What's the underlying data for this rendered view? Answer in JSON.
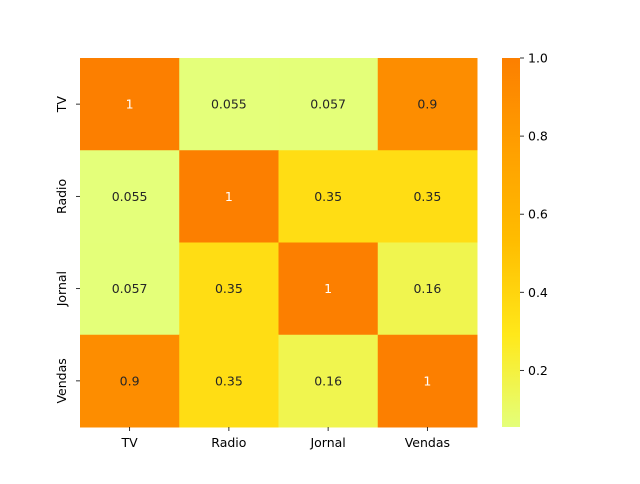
{
  "chart_data": {
    "type": "heatmap",
    "title": "",
    "xlabel": "",
    "ylabel": "",
    "x_categories": [
      "TV",
      "Radio",
      "Jornal",
      "Vendas"
    ],
    "y_categories": [
      "TV",
      "Radio",
      "Jornal",
      "Vendas"
    ],
    "values": [
      [
        1,
        0.055,
        0.057,
        0.9
      ],
      [
        0.055,
        1,
        0.35,
        0.35
      ],
      [
        0.057,
        0.35,
        1,
        0.16
      ],
      [
        0.9,
        0.35,
        0.16,
        1
      ]
    ],
    "cell_labels": [
      [
        "1",
        "0.055",
        "0.057",
        "0.9"
      ],
      [
        "0.055",
        "1",
        "0.35",
        "0.35"
      ],
      [
        "0.057",
        "0.35",
        "1",
        "0.16"
      ],
      [
        "0.9",
        "0.35",
        "0.16",
        "1"
      ]
    ],
    "colormap": "Wistia",
    "colormap_stops": [
      "#e4ff7a",
      "#ffe81a",
      "#ffbd00",
      "#ffa000",
      "#fc7f00"
    ],
    "vmin": 0.055,
    "vmax": 1,
    "colorbar": {
      "ticks": [
        0.2,
        0.4,
        0.6,
        0.8,
        1.0
      ],
      "tick_labels": [
        "0.2",
        "0.4",
        "0.6",
        "0.8",
        "1.0"
      ]
    }
  }
}
